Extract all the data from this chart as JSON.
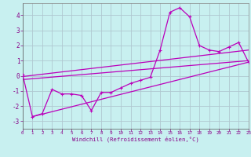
{
  "xlabel": "Windchill (Refroidissement éolien,°C)",
  "bg_color": "#c8f0f0",
  "grid_color": "#b0c8d0",
  "line_color": "#bb00bb",
  "x_data": [
    0,
    1,
    2,
    3,
    4,
    5,
    6,
    7,
    8,
    9,
    10,
    11,
    12,
    13,
    14,
    15,
    16,
    17,
    18,
    19,
    20,
    21,
    22,
    23
  ],
  "y_data": [
    0.1,
    -2.7,
    -2.5,
    -0.9,
    -1.2,
    -1.2,
    -1.3,
    -2.3,
    -1.1,
    -1.1,
    -0.8,
    -0.5,
    -0.3,
    -0.1,
    1.7,
    4.2,
    4.5,
    3.9,
    2.0,
    1.7,
    1.6,
    1.9,
    2.2,
    0.9
  ],
  "trend1_x": [
    1,
    23
  ],
  "trend1_y": [
    -2.7,
    0.9
  ],
  "trend2_x": [
    0,
    23
  ],
  "trend2_y": [
    -0.05,
    1.7
  ],
  "trend3_x": [
    0,
    23
  ],
  "trend3_y": [
    -0.25,
    1.0
  ],
  "ylim": [
    -3.5,
    4.8
  ],
  "xlim": [
    0,
    23
  ],
  "yticks": [
    -3,
    -2,
    -1,
    0,
    1,
    2,
    3,
    4
  ],
  "xticks": [
    0,
    1,
    2,
    3,
    4,
    5,
    6,
    7,
    8,
    9,
    10,
    11,
    12,
    13,
    14,
    15,
    16,
    17,
    18,
    19,
    20,
    21,
    22,
    23
  ]
}
